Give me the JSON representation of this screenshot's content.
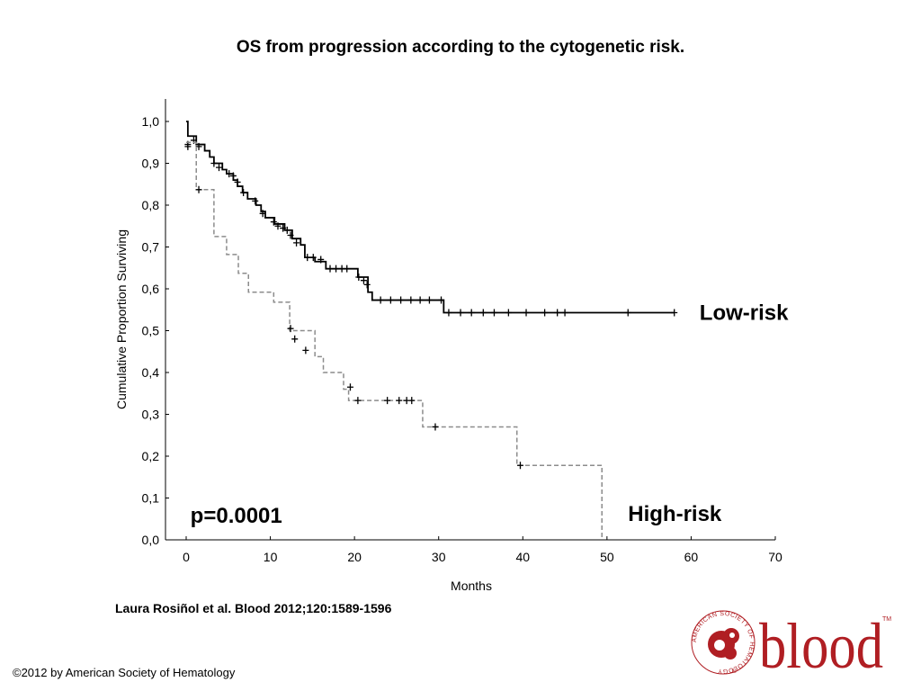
{
  "slide": {
    "title": "OS from progression according to the cytogenetic risk.",
    "citation": "Laura Rosiñol et al. Blood 2012;120:1589-1596",
    "copyright": "©2012 by American Society of Hematology"
  },
  "logo": {
    "wordmark": "blood",
    "ring_text": "AMERICAN SOCIETY OF HEMATOLOGY",
    "trademark": "TM",
    "registered": "®",
    "color": "#b01e23"
  },
  "chart_data": {
    "type": "line",
    "subtype": "kaplan-meier",
    "xlabel": "Months",
    "ylabel": "Cumulative Proportion Surviving",
    "xlim": [
      0,
      70
    ],
    "ylim": [
      0,
      1
    ],
    "x_ticks": [
      0,
      10,
      20,
      30,
      40,
      50,
      60,
      70
    ],
    "x_tick_labels": [
      "0",
      "10",
      "20",
      "30",
      "40",
      "50",
      "60",
      "70"
    ],
    "y_ticks": [
      0,
      0.1,
      0.2,
      0.3,
      0.4,
      0.5,
      0.6,
      0.7,
      0.8,
      0.9,
      1.0
    ],
    "y_tick_labels": [
      "0,0",
      "0,1",
      "0,2",
      "0,3",
      "0,4",
      "0,5",
      "0,6",
      "0,7",
      "0,8",
      "0,9",
      "1,0"
    ],
    "grid": false,
    "annotations": [
      {
        "text": "p=0.0001",
        "x": 0.5,
        "y": 0.06
      },
      {
        "text": "Low-risk",
        "x": 61,
        "y": 0.545
      },
      {
        "text": "High-risk",
        "x": 52.5,
        "y": 0.065
      }
    ],
    "series": [
      {
        "name": "Low-risk",
        "style": "solid",
        "color": "#000000",
        "steps": [
          [
            0,
            1.0
          ],
          [
            0.2,
            0.965
          ],
          [
            1.2,
            0.945
          ],
          [
            2.2,
            0.93
          ],
          [
            2.8,
            0.915
          ],
          [
            3.3,
            0.9
          ],
          [
            4.3,
            0.885
          ],
          [
            4.8,
            0.875
          ],
          [
            5.6,
            0.86
          ],
          [
            6.1,
            0.845
          ],
          [
            6.7,
            0.83
          ],
          [
            7.3,
            0.815
          ],
          [
            8.3,
            0.8
          ],
          [
            8.9,
            0.785
          ],
          [
            9.4,
            0.77
          ],
          [
            10.5,
            0.755
          ],
          [
            11.7,
            0.74
          ],
          [
            12.6,
            0.72
          ],
          [
            13.6,
            0.705
          ],
          [
            14.1,
            0.675
          ],
          [
            15.3,
            0.665
          ],
          [
            16.6,
            0.648
          ],
          [
            20.4,
            0.628
          ],
          [
            21.6,
            0.592
          ],
          [
            22.1,
            0.573
          ],
          [
            30.6,
            0.543
          ],
          [
            58,
            0.543
          ]
        ],
        "censored": [
          [
            0.2,
            0.945
          ],
          [
            0.9,
            0.955
          ],
          [
            1.5,
            0.94
          ],
          [
            3.3,
            0.9
          ],
          [
            3.9,
            0.89
          ],
          [
            5.1,
            0.875
          ],
          [
            5.6,
            0.87
          ],
          [
            6.1,
            0.855
          ],
          [
            6.8,
            0.83
          ],
          [
            8.2,
            0.81
          ],
          [
            9.1,
            0.78
          ],
          [
            10.4,
            0.76
          ],
          [
            10.9,
            0.75
          ],
          [
            11.5,
            0.745
          ],
          [
            12.0,
            0.74
          ],
          [
            12.4,
            0.728
          ],
          [
            13.1,
            0.71
          ],
          [
            14.4,
            0.675
          ],
          [
            15.1,
            0.675
          ],
          [
            16.0,
            0.67
          ],
          [
            17.1,
            0.648
          ],
          [
            17.8,
            0.648
          ],
          [
            18.5,
            0.648
          ],
          [
            19.1,
            0.648
          ],
          [
            20.5,
            0.628
          ],
          [
            21.1,
            0.62
          ],
          [
            21.5,
            0.61
          ],
          [
            23.1,
            0.573
          ],
          [
            24.3,
            0.573
          ],
          [
            25.5,
            0.573
          ],
          [
            26.7,
            0.573
          ],
          [
            27.8,
            0.573
          ],
          [
            28.9,
            0.573
          ],
          [
            30.3,
            0.573
          ],
          [
            31.2,
            0.543
          ],
          [
            32.6,
            0.543
          ],
          [
            33.9,
            0.543
          ],
          [
            35.3,
            0.543
          ],
          [
            36.6,
            0.543
          ],
          [
            38.3,
            0.543
          ],
          [
            40.4,
            0.543
          ],
          [
            42.6,
            0.543
          ],
          [
            44.1,
            0.543
          ],
          [
            45.0,
            0.543
          ],
          [
            52.5,
            0.543
          ],
          [
            58.0,
            0.543
          ]
        ]
      },
      {
        "name": "High-risk",
        "style": "dashed",
        "color": "#8c8c8c",
        "steps": [
          [
            0,
            0.95
          ],
          [
            1.2,
            0.837
          ],
          [
            3.3,
            0.725
          ],
          [
            4.8,
            0.682
          ],
          [
            6.2,
            0.637
          ],
          [
            7.4,
            0.592
          ],
          [
            10.4,
            0.568
          ],
          [
            12.3,
            0.5
          ],
          [
            15.3,
            0.438
          ],
          [
            16.3,
            0.4
          ],
          [
            18.7,
            0.36
          ],
          [
            19.3,
            0.333
          ],
          [
            28.1,
            0.27
          ],
          [
            39.3,
            0.178
          ],
          [
            49.4,
            0.0
          ]
        ],
        "censored": [
          [
            0.2,
            0.94
          ],
          [
            1.5,
            0.837
          ],
          [
            12.4,
            0.505
          ],
          [
            12.9,
            0.48
          ],
          [
            14.2,
            0.453
          ],
          [
            19.5,
            0.365
          ],
          [
            20.4,
            0.333
          ],
          [
            23.9,
            0.333
          ],
          [
            25.3,
            0.333
          ],
          [
            26.2,
            0.333
          ],
          [
            26.8,
            0.333
          ],
          [
            29.6,
            0.27
          ],
          [
            39.7,
            0.178
          ]
        ]
      }
    ]
  }
}
